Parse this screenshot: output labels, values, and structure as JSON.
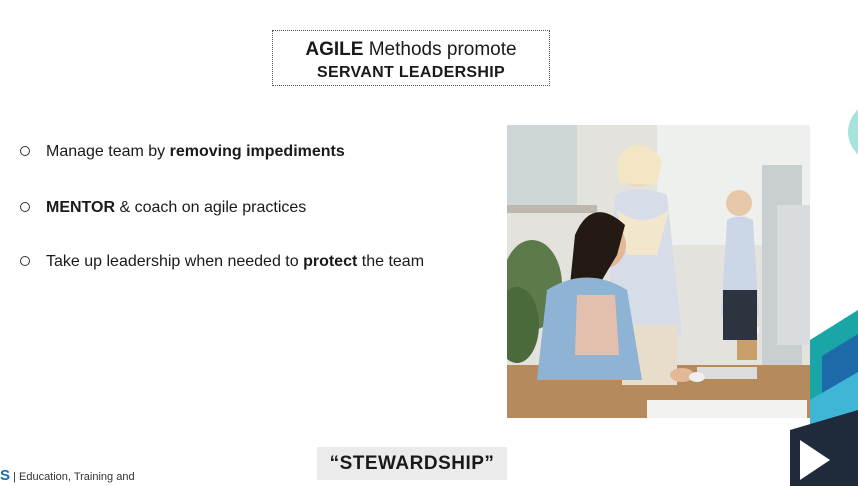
{
  "slide": {
    "title_line1_bold": "AGILE",
    "title_line1_rest": "Methods promote",
    "title_line2": "SERVANT LEADERSHIP",
    "bullets": [
      {
        "pre": "Manage team by ",
        "bold": "removing impediments",
        "post": ""
      },
      {
        "pre": "",
        "bold": "MENTOR",
        "post": " & coach on agile practices"
      },
      {
        "pre": "Take up leadership when needed to ",
        "bold": "protect",
        "post": " the team"
      }
    ],
    "stewardship_label": "“STEWARDSHIP”",
    "footer_logo_fragment": "S",
    "footer_text": "| Education, Training and"
  },
  "colors": {
    "accent_teal": "#1aa6a6",
    "accent_blue": "#1e6aa8",
    "dark_navy": "#1f2b3a"
  }
}
